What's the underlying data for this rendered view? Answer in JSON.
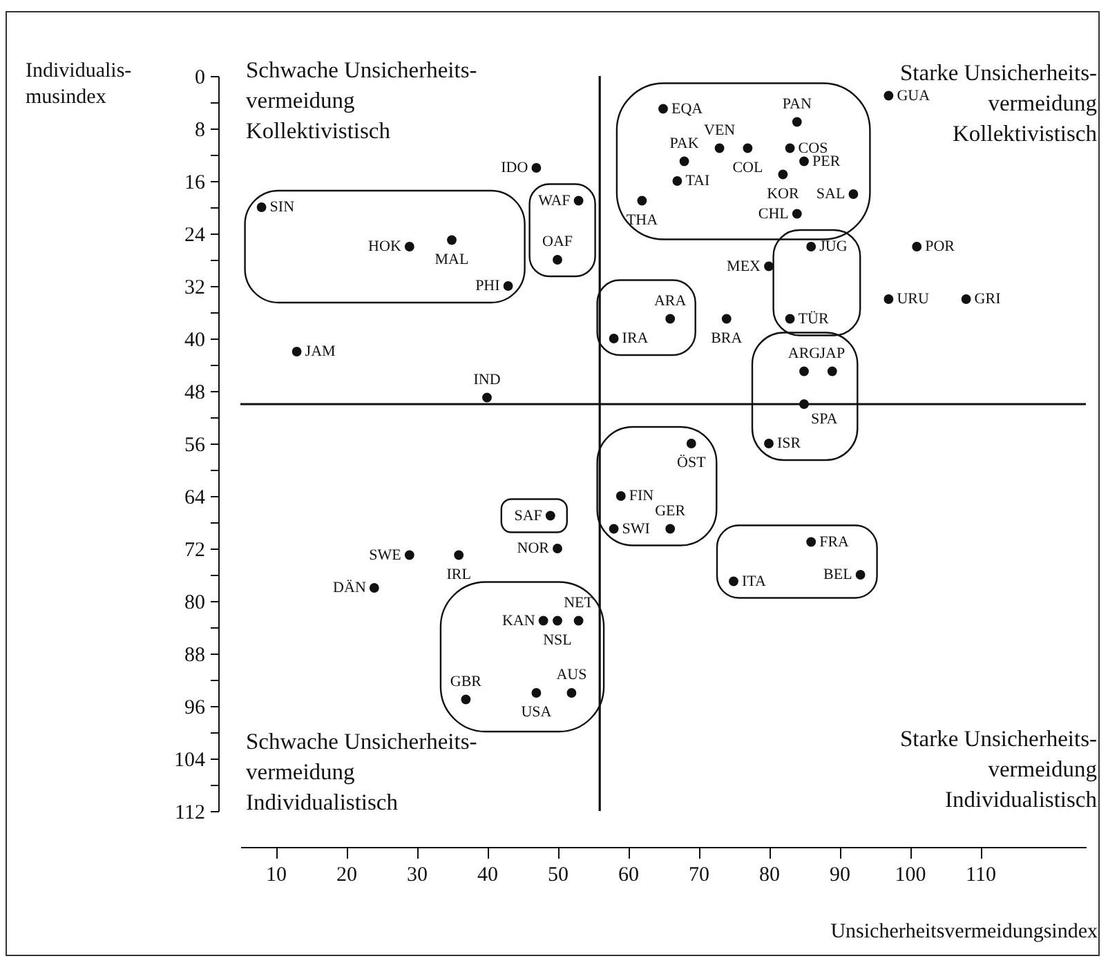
{
  "chart_data": {
    "type": "scatter",
    "xlabel": "Unsicherheitsvermeidungsindex",
    "ylabel": "Individualis-\nmusindex",
    "xlim": [
      5,
      125
    ],
    "ylim": [
      112,
      0
    ],
    "xticks": [
      10,
      20,
      30,
      40,
      50,
      60,
      70,
      80,
      90,
      100,
      110
    ],
    "yticks": [
      0,
      {
        "value": 4,
        "label": null
      },
      8,
      {
        "value": 12,
        "label": null
      },
      16,
      {
        "value": 20,
        "label": null
      },
      24,
      {
        "value": 28,
        "label": null
      },
      32,
      {
        "value": 36,
        "label": null
      },
      40,
      {
        "value": 44,
        "label": null
      },
      48,
      {
        "value": 52,
        "label": null
      },
      56,
      {
        "value": 60,
        "label": null
      },
      64,
      {
        "value": 68,
        "label": null
      },
      72,
      {
        "value": 76,
        "label": null
      },
      80,
      {
        "value": 84,
        "label": null
      },
      88,
      {
        "value": 92,
        "label": null
      },
      96,
      {
        "value": 100,
        "label": null
      },
      104,
      {
        "value": 108,
        "label": null
      },
      112
    ],
    "marker": "circle",
    "series": [
      {
        "color": "#111111",
        "x": [
          8,
          29,
          35,
          43,
          13,
          40,
          47,
          53,
          50,
          65,
          84,
          97,
          73,
          77,
          68,
          83,
          85,
          67,
          82,
          92,
          62,
          84,
          101,
          80,
          86,
          97,
          108,
          83,
          66,
          58,
          74,
          85,
          89,
          85,
          80,
          49,
          50,
          29,
          36,
          24,
          48,
          50,
          53,
          37,
          47,
          52,
          69,
          59,
          58,
          66,
          86,
          93,
          75
        ],
        "values": [
          20,
          26,
          25,
          32,
          42,
          49,
          14,
          19,
          28,
          5,
          7,
          3,
          11,
          11,
          13,
          11,
          13,
          16,
          15,
          18,
          19,
          21,
          26,
          29,
          26,
          34,
          34,
          37,
          37,
          40,
          37,
          45,
          45,
          50,
          56,
          67,
          72,
          73,
          73,
          78,
          83,
          83,
          83,
          95,
          94,
          94,
          56,
          64,
          69,
          69,
          71,
          76,
          77
        ],
        "value_labels": [
          "SIN",
          "HOK",
          "MAL",
          "PHI",
          "JAM",
          "IND",
          "IDO",
          "WAF",
          "OAF",
          "EQA",
          "PAN",
          "GUA",
          "VEN",
          "COL",
          "PAK",
          "COS",
          "PER",
          "TAI",
          "KOR",
          "SAL",
          "THA",
          "CHL",
          "POR",
          "MEX",
          "JUG",
          "URU",
          "GRI",
          "TÜR",
          "ARA",
          "IRA",
          "BRA",
          "ARG",
          "JAP",
          "SPA",
          "ISR",
          "SAF",
          "NOR",
          "SWE",
          "IRL",
          "DÄN",
          "KAN",
          "NSL",
          "NET",
          "GBR",
          "USA",
          "AUS",
          "ÖST",
          "FIN",
          "SWI",
          "GER",
          "FRA",
          "BEL",
          "ITA"
        ]
      }
    ],
    "ref_lines": [
      {
        "axis": "x",
        "value": 56
      },
      {
        "axis": "y",
        "value": 50
      }
    ],
    "annotations": [
      "Schwache Unsicherheits-\nvermeidung\nKollektivistisch",
      "Starke Unsicherheits-\nvermeidung\nKollektivistisch",
      "Schwache Unsicherheits-\nvermeidung\nIndividualistisch",
      "Starke Unsicherheits-\nvermeidung\nIndividualistisch"
    ]
  }
}
